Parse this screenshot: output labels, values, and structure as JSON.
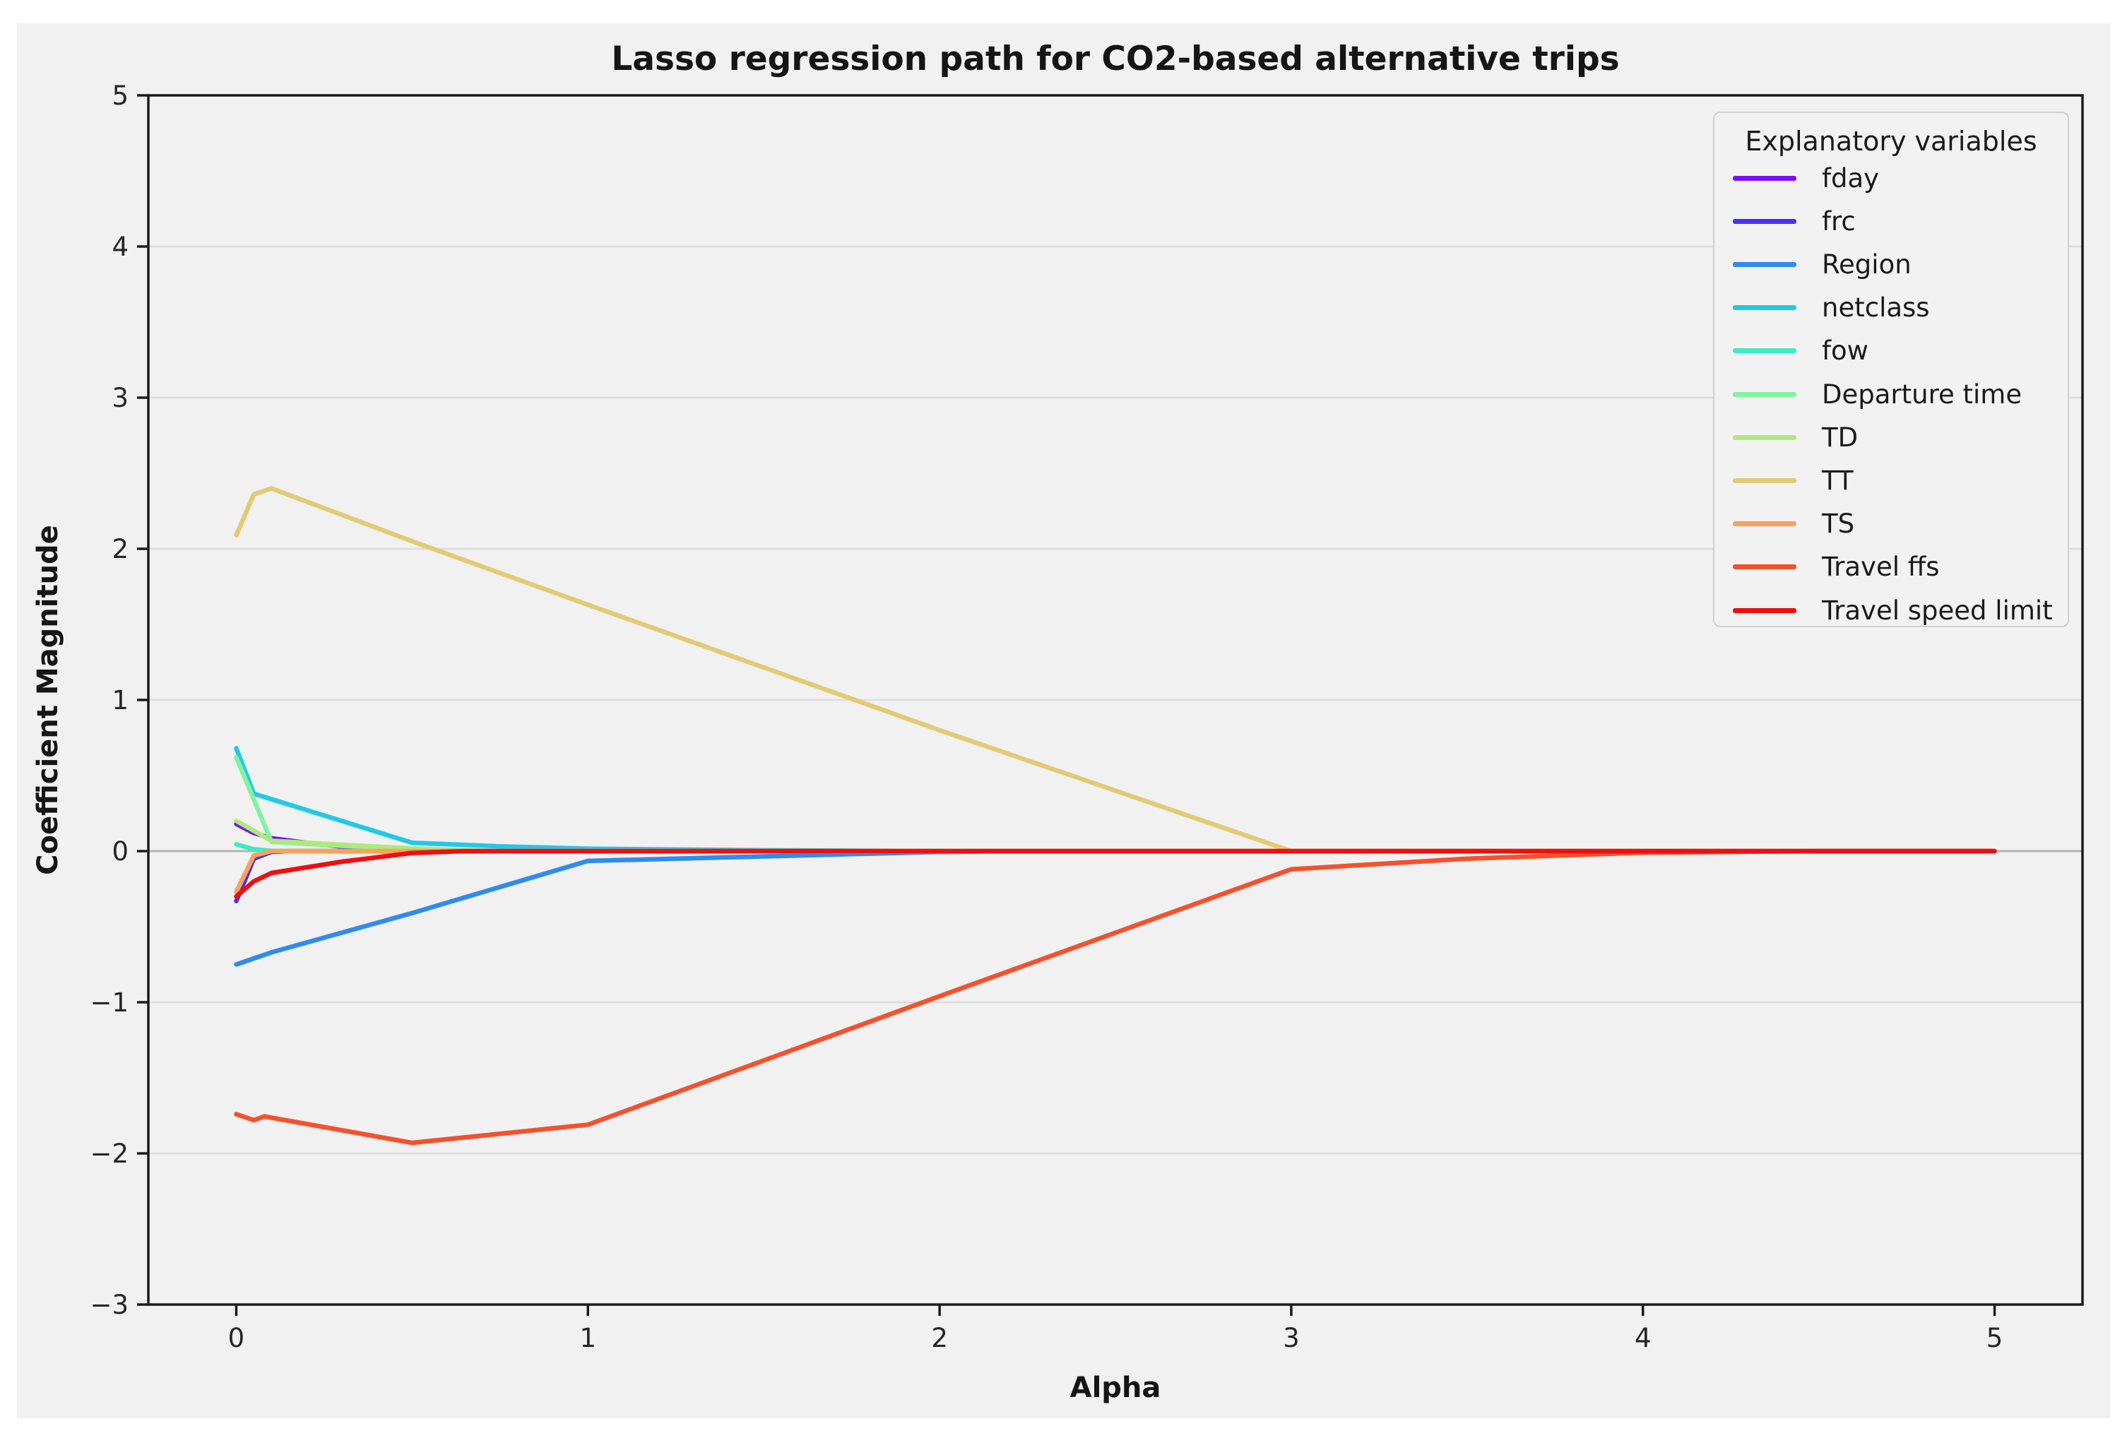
{
  "chart_data": {
    "type": "line",
    "title": "Lasso regression path for CO2-based alternative trips",
    "xlabel": "Alpha",
    "ylabel": "Coefficient Magnitude",
    "xlim": [
      -0.25,
      5.25
    ],
    "ylim": [
      -3,
      5
    ],
    "xticks": [
      0,
      1,
      2,
      3,
      4,
      5
    ],
    "yticks": [
      -3,
      -2,
      -1,
      0,
      1,
      2,
      3,
      4,
      5
    ],
    "grid": "horizontal-only",
    "zero_line": true,
    "background": "#f1f1f1",
    "gridline_color": "#dcdcdc",
    "zero_line_color": "#b3b3b3",
    "legend": {
      "title": "Explanatory variables",
      "position": "upper right"
    },
    "series": [
      {
        "name": "fday",
        "color": "#7c0ffb",
        "points": [
          [
            0,
            0.18
          ],
          [
            0.05,
            0.12
          ],
          [
            0.1,
            0.085
          ],
          [
            0.2,
            0.055
          ],
          [
            0.3,
            0.03
          ],
          [
            0.4,
            0.008
          ],
          [
            0.5,
            0
          ],
          [
            5,
            0
          ]
        ]
      },
      {
        "name": "frc",
        "color": "#4a2ff0",
        "points": [
          [
            0,
            -0.33
          ],
          [
            0.05,
            -0.05
          ],
          [
            0.1,
            -0.005
          ],
          [
            0.15,
            0
          ],
          [
            5,
            0
          ]
        ]
      },
      {
        "name": "Region",
        "color": "#2e8bf0",
        "points": [
          [
            0,
            -0.75
          ],
          [
            0.1,
            -0.67
          ],
          [
            0.5,
            -0.41
          ],
          [
            1,
            -0.065
          ],
          [
            1.5,
            -0.035
          ],
          [
            2,
            -0.005
          ],
          [
            2.2,
            0
          ],
          [
            5,
            0
          ]
        ]
      },
      {
        "name": "netclass",
        "color": "#22c8e8",
        "points": [
          [
            0,
            0.68
          ],
          [
            0.05,
            0.38
          ],
          [
            0.5,
            0.055
          ],
          [
            0.75,
            0.032
          ],
          [
            1,
            0.016
          ],
          [
            1.5,
            0.005
          ],
          [
            2,
            0
          ],
          [
            5,
            0
          ]
        ]
      },
      {
        "name": "fow",
        "color": "#3cecc3",
        "points": [
          [
            0,
            0.045
          ],
          [
            0.05,
            0.012
          ],
          [
            0.1,
            0.002
          ],
          [
            0.15,
            0
          ],
          [
            5,
            0
          ]
        ]
      },
      {
        "name": "Departure time",
        "color": "#83f2a1",
        "points": [
          [
            0,
            0.62
          ],
          [
            0.1,
            0.062
          ],
          [
            0.3,
            0.035
          ],
          [
            0.5,
            0.015
          ],
          [
            0.7,
            0.003
          ],
          [
            0.8,
            0
          ],
          [
            5,
            0
          ]
        ]
      },
      {
        "name": "TD",
        "color": "#aeea7a",
        "points": [
          [
            0,
            0.2
          ],
          [
            0.1,
            0.068
          ],
          [
            0.3,
            0.042
          ],
          [
            0.5,
            0.018
          ],
          [
            0.7,
            0
          ],
          [
            5,
            0
          ]
        ]
      },
      {
        "name": "TT",
        "color": "#e2cb74",
        "points": [
          [
            0,
            2.09
          ],
          [
            0.05,
            2.36
          ],
          [
            0.1,
            2.4
          ],
          [
            0.5,
            2.05
          ],
          [
            1,
            1.63
          ],
          [
            2,
            0.8
          ],
          [
            3,
            0
          ],
          [
            5,
            0
          ]
        ]
      },
      {
        "name": "TS",
        "color": "#f9a25a",
        "points": [
          [
            0,
            -0.27
          ],
          [
            0.05,
            -0.03
          ],
          [
            0.1,
            0
          ],
          [
            5,
            0
          ]
        ]
      },
      {
        "name": "Travel ffs",
        "color": "#f4512c",
        "points": [
          [
            0,
            -1.74
          ],
          [
            0.05,
            -1.78
          ],
          [
            0.08,
            -1.755
          ],
          [
            0.5,
            -1.93
          ],
          [
            1,
            -1.81
          ],
          [
            2,
            -0.96
          ],
          [
            3,
            -0.12
          ],
          [
            3.5,
            -0.05
          ],
          [
            4,
            -0.01
          ],
          [
            4.5,
            0
          ],
          [
            5,
            0
          ]
        ]
      },
      {
        "name": "Travel speed limit",
        "color": "#ee0f0f",
        "points": [
          [
            0,
            -0.3
          ],
          [
            0.05,
            -0.2
          ],
          [
            0.1,
            -0.145
          ],
          [
            0.3,
            -0.07
          ],
          [
            0.5,
            -0.012
          ],
          [
            0.65,
            0
          ],
          [
            5,
            0
          ]
        ]
      }
    ]
  }
}
